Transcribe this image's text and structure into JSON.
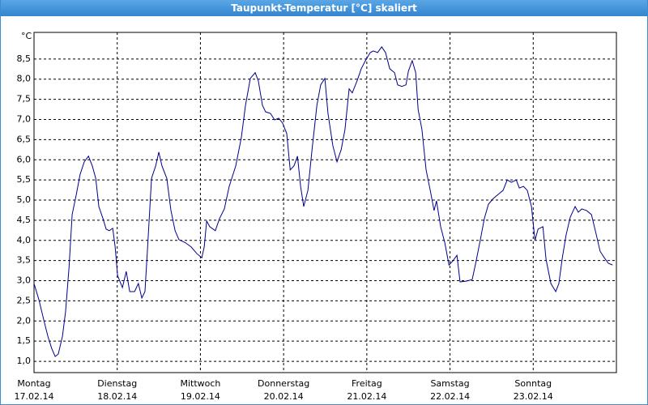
{
  "window_title": "Taupunkt-Temperatur [°C] skaliert",
  "chart_data": {
    "type": "line",
    "y_unit_label": "°C",
    "x": [
      0,
      1.4,
      2.8,
      4,
      5.1,
      6.1,
      7,
      8.2,
      9.1,
      10.1,
      11,
      12.2,
      13.3,
      14.5,
      15.7,
      16.8,
      17.8,
      18.7,
      19.9,
      20.8,
      21.7,
      22.7,
      23.4,
      24.1,
      25.5,
      26.6,
      27.6,
      29,
      30.1,
      31.1,
      32,
      32.7,
      33.9,
      35.1,
      36,
      36.9,
      38.3,
      39.5,
      40.7,
      41.8,
      43.7,
      45.3,
      47,
      48.4,
      49.1,
      49.8,
      50.7,
      52.3,
      53.5,
      54.9,
      56.3,
      58.2,
      59.8,
      61,
      62.4,
      63.8,
      64.7,
      65.9,
      66.8,
      68.2,
      69.4,
      70.6,
      71.7,
      72.9,
      73.9,
      75,
      76,
      76.9,
      77.8,
      79,
      80.2,
      81.6,
      82.7,
      83.9,
      84.8,
      86.2,
      87.4,
      88.6,
      89.7,
      90.9,
      91.8,
      93.2,
      94.4,
      95.6,
      97,
      97.9,
      99.1,
      100.3,
      101.4,
      102.6,
      104,
      104.9,
      106.1,
      107.3,
      108,
      109.1,
      110.1,
      110.8,
      111.9,
      113.1,
      114.3,
      115.4,
      116.1,
      117.3,
      118.5,
      119.7,
      120.8,
      122,
      122.9,
      124.8,
      126.4,
      127.4,
      128.8,
      129.9,
      131.1,
      132.5,
      133.9,
      135.3,
      136.5,
      137.7,
      139.1,
      140,
      141.2,
      142.3,
      143.5,
      144.5,
      145.4,
      146.8,
      147.7,
      149.1,
      150.5,
      151.4,
      152.4,
      153.5,
      154.7,
      156.1,
      157,
      158,
      159.4,
      160.8,
      162.2,
      163.3,
      164.5,
      165.7,
      166.9
    ],
    "series": [
      {
        "color": "#00008b",
        "values": [
          2.93,
          2.53,
          2.03,
          1.62,
          1.32,
          1.12,
          1.18,
          1.62,
          2.23,
          3.33,
          4.64,
          5.14,
          5.64,
          5.95,
          6.09,
          5.85,
          5.54,
          4.84,
          4.54,
          4.28,
          4.24,
          4.3,
          3.84,
          3.13,
          2.83,
          3.23,
          2.73,
          2.73,
          2.93,
          2.57,
          2.73,
          3.73,
          5.54,
          5.85,
          6.19,
          5.85,
          5.54,
          4.74,
          4.24,
          4.02,
          3.94,
          3.84,
          3.67,
          3.57,
          3.84,
          4.48,
          4.34,
          4.24,
          4.54,
          4.78,
          5.34,
          5.85,
          6.55,
          7.35,
          8.02,
          8.16,
          7.96,
          7.35,
          7.19,
          7.15,
          6.99,
          7.03,
          6.91,
          6.65,
          5.75,
          5.85,
          6.09,
          5.34,
          4.84,
          5.24,
          6.25,
          7.35,
          7.86,
          8.02,
          7.15,
          6.35,
          5.95,
          6.25,
          6.75,
          7.76,
          7.66,
          7.96,
          8.26,
          8.46,
          8.66,
          8.7,
          8.66,
          8.8,
          8.66,
          8.26,
          8.16,
          7.86,
          7.82,
          7.86,
          8.2,
          8.46,
          8.16,
          7.25,
          6.75,
          5.75,
          5.24,
          4.74,
          4.98,
          4.34,
          3.94,
          3.39,
          3.49,
          3.63,
          2.97,
          2.99,
          3.03,
          3.43,
          4.04,
          4.54,
          4.9,
          5.04,
          5.14,
          5.24,
          5.5,
          5.44,
          5.5,
          5.3,
          5.34,
          5.24,
          4.84,
          4.0,
          4.28,
          4.34,
          3.53,
          2.93,
          2.73,
          2.93,
          3.57,
          4.14,
          4.58,
          4.84,
          4.7,
          4.78,
          4.74,
          4.64,
          4.14,
          3.73,
          3.57,
          3.43,
          3.39
        ]
      }
    ],
    "xlim": [
      0,
      168
    ],
    "xticks": [
      {
        "value": 0,
        "label": "Montag"
      },
      {
        "value": 24,
        "label": "Dienstag"
      },
      {
        "value": 48,
        "label": "Mittwoch"
      },
      {
        "value": 72,
        "label": "Donnerstag"
      },
      {
        "value": 96,
        "label": "Freitag"
      },
      {
        "value": 120,
        "label": "Samstag"
      },
      {
        "value": 144,
        "label": "Sonntag"
      }
    ],
    "xtick_dates": [
      "17.02.14",
      "18.02.14",
      "19.02.14",
      "20.02.14",
      "21.02.14",
      "22.02.14",
      "23.02.14"
    ],
    "ylim": [
      0.72,
      9.16
    ],
    "yticks": [
      {
        "value": 1,
        "label": "1,0"
      },
      {
        "value": 1.5,
        "label": "1,5"
      },
      {
        "value": 2,
        "label": "2,0"
      },
      {
        "value": 2.5,
        "label": "2,5"
      },
      {
        "value": 3,
        "label": "3,0"
      },
      {
        "value": 3.5,
        "label": "3,5"
      },
      {
        "value": 4,
        "label": "4,0"
      },
      {
        "value": 4.5,
        "label": "4,5"
      },
      {
        "value": 5,
        "label": "5,0"
      },
      {
        "value": 5.5,
        "label": "5,5"
      },
      {
        "value": 6,
        "label": "6,0"
      },
      {
        "value": 6.5,
        "label": "6,5"
      },
      {
        "value": 7,
        "label": "7,0"
      },
      {
        "value": 7.5,
        "label": "7,5"
      },
      {
        "value": 8,
        "label": "8,0"
      },
      {
        "value": 8.5,
        "label": "8,5"
      }
    ],
    "grid": true
  }
}
